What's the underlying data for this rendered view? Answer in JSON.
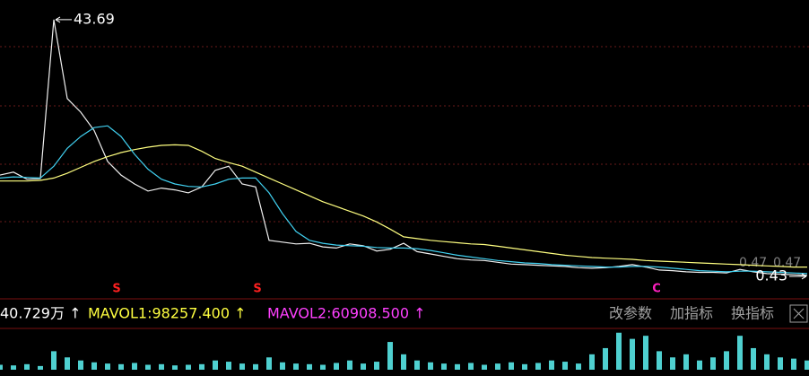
{
  "chart_data": [
    {
      "type": "line",
      "series": [
        {
          "color": "#f0f0f0",
          "values": [
            17.5,
            18.0,
            16.8,
            16.9,
            43.69,
            30.4,
            28.1,
            25.0,
            19.8,
            17.5,
            16.0,
            14.8,
            15.3,
            15.0,
            14.5,
            15.5,
            18.3,
            19.0,
            16.0,
            15.5,
            6.5,
            6.2,
            5.9,
            6.0,
            5.4,
            5.2,
            5.9,
            5.6,
            4.7,
            5.0,
            6.0,
            4.6,
            4.2,
            3.8,
            3.4,
            3.2,
            3.1,
            2.8,
            2.5,
            2.4,
            2.3,
            2.2,
            2.1,
            1.9,
            1.8,
            1.9,
            2.1,
            2.4,
            2.0,
            1.5,
            1.4,
            1.2,
            1.1,
            1.1,
            1.0,
            1.6,
            1.2,
            0.9,
            0.8,
            0.7,
            0.6
          ]
        },
        {
          "color": "#ffff80",
          "values": [
            16.5,
            16.5,
            16.5,
            16.6,
            17.0,
            17.8,
            18.8,
            19.8,
            20.6,
            21.3,
            21.8,
            22.2,
            22.5,
            22.6,
            22.5,
            21.5,
            20.3,
            19.6,
            19.0,
            18.0,
            17.0,
            16.0,
            15.0,
            14.0,
            13.0,
            12.2,
            11.4,
            10.6,
            9.6,
            8.4,
            7.1,
            6.8,
            6.5,
            6.3,
            6.1,
            5.9,
            5.8,
            5.5,
            5.2,
            4.9,
            4.6,
            4.3,
            4.0,
            3.8,
            3.6,
            3.5,
            3.4,
            3.3,
            3.1,
            3.0,
            2.9,
            2.8,
            2.7,
            2.6,
            2.5,
            2.4,
            2.3,
            2.2,
            2.1,
            2.0,
            2.0
          ]
        },
        {
          "color": "#40d0f0",
          "values": [
            17,
            17.2,
            17.1,
            17.0,
            19,
            22,
            24,
            25.5,
            25.8,
            24,
            21,
            18.5,
            16.8,
            16,
            15.6,
            15.5,
            16,
            16.8,
            17,
            17,
            14.5,
            11,
            8,
            6.5,
            6,
            5.7,
            5.6,
            5.5,
            5.3,
            5.2,
            5.2,
            5.1,
            4.8,
            4.4,
            4.0,
            3.7,
            3.4,
            3.1,
            2.9,
            2.7,
            2.6,
            2.4,
            2.3,
            2.2,
            2.1,
            2.0,
            2.0,
            2.1,
            2.1,
            2.0,
            1.8,
            1.6,
            1.4,
            1.3,
            1.2,
            1.3,
            1.3,
            1.2,
            1.1,
            1.0,
            0.9
          ]
        }
      ],
      "ylim": [
        -2.9,
        47.0
      ],
      "high_label": "43.69",
      "low_label": "0.43",
      "side_labels": [
        "0.47",
        "0.47"
      ],
      "signals": [
        "S",
        "S",
        "C"
      ]
    },
    {
      "type": "bar",
      "values": [
        80000,
        70000,
        90000,
        60000,
        300000,
        200000,
        150000,
        120000,
        100000,
        90000,
        110000,
        80000,
        90000,
        70000,
        80000,
        90000,
        150000,
        130000,
        100000,
        90000,
        200000,
        120000,
        100000,
        90000,
        80000,
        110000,
        150000,
        100000,
        130000,
        450000,
        250000,
        150000,
        120000,
        100000,
        90000,
        110000,
        80000,
        100000,
        120000,
        90000,
        110000,
        150000,
        130000,
        100000,
        250000,
        350000,
        600000,
        500000,
        550000,
        300000,
        200000,
        250000,
        150000,
        200000,
        300000,
        550000,
        350000,
        250000,
        200000,
        180000,
        150000
      ],
      "color": "#4fd0d0",
      "ylim": [
        0,
        800000
      ],
      "indicators": [
        {
          "text": "40.729万 ↑",
          "color": "#ffffff"
        },
        {
          "text": "MAVOL1:98257.400 ↑",
          "color": "#ffff40"
        },
        {
          "text": "MAVOL2:60908.500 ↑",
          "color": "#ff40ff"
        }
      ]
    }
  ],
  "toolbar": [
    "改参数",
    "加指标",
    "换指标"
  ]
}
